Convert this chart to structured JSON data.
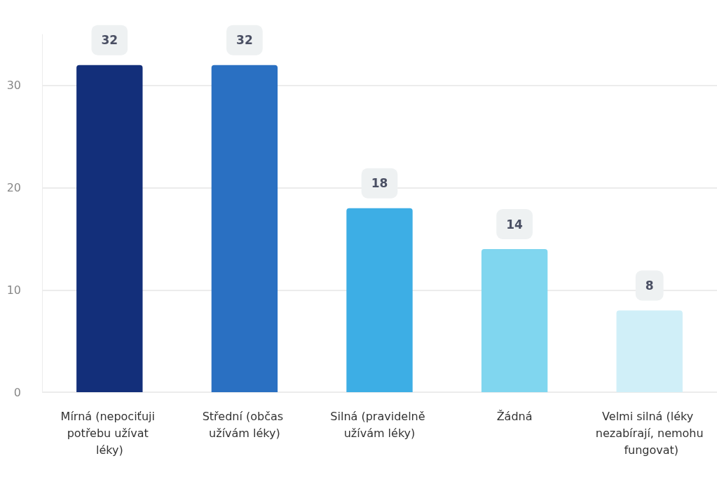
{
  "chart_data": {
    "type": "bar",
    "categories": [
      "Mírná (nepociťuji potřebu užívat léky)",
      "Střední (občas užívám léky)",
      "Silná (pravidelně užívám léky)",
      "Žádná",
      "Velmi silná (léky nezabírají, nemohu fungovat)"
    ],
    "values": [
      32,
      32,
      18,
      14,
      8
    ],
    "colors": [
      "#132f7a",
      "#2a70c2",
      "#3daee5",
      "#80d6ef",
      "#d0eff8"
    ],
    "ylim": [
      0,
      35
    ],
    "yticks": [
      0,
      10,
      20,
      30
    ],
    "grid": "y",
    "data_labels": true
  }
}
